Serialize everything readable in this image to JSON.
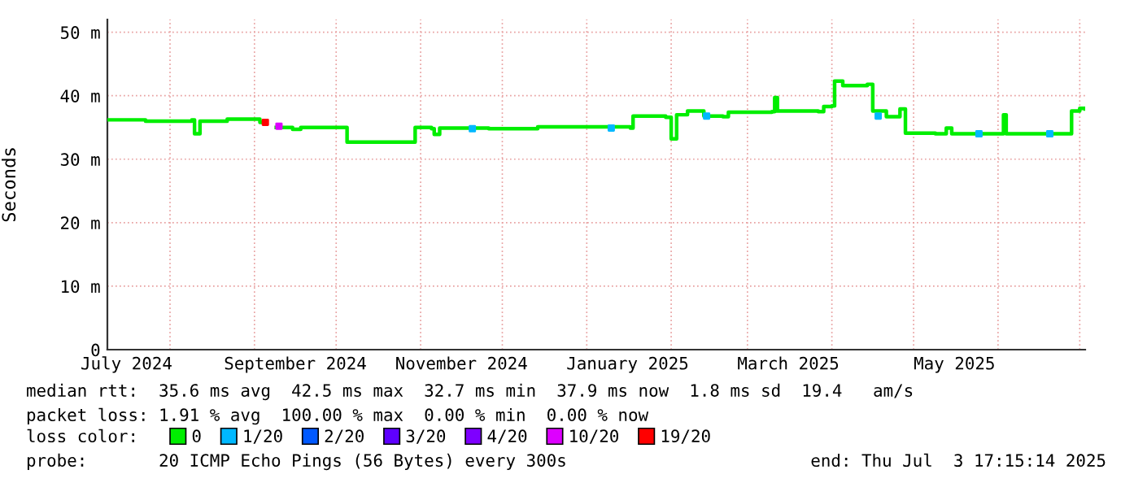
{
  "chart_data": {
    "type": "step",
    "ylabel": "Seconds",
    "x": [
      "2024-07-09",
      "2024-07-23",
      "2024-08-09",
      "2024-08-10",
      "2024-08-12",
      "2024-08-22",
      "2024-09-03",
      "2024-09-05",
      "2024-09-09",
      "2024-09-15",
      "2024-09-18",
      "2024-10-03",
      "2024-10-05",
      "2024-10-29",
      "2024-10-30",
      "2024-11-05",
      "2024-11-06",
      "2024-11-08",
      "2024-11-26",
      "2024-12-14",
      "2025-01-17",
      "2025-01-18",
      "2025-01-30",
      "2025-02-01",
      "2025-02-03",
      "2025-02-07",
      "2025-02-13",
      "2025-02-20",
      "2025-02-22",
      "2025-03-10",
      "2025-03-11",
      "2025-03-12",
      "2025-03-27",
      "2025-03-29",
      "2025-04-01",
      "2025-04-02",
      "2025-04-05",
      "2025-04-14",
      "2025-04-16",
      "2025-04-21",
      "2025-04-26",
      "2025-04-28",
      "2025-05-09",
      "2025-05-13",
      "2025-05-15",
      "2025-06-02",
      "2025-06-03",
      "2025-06-04",
      "2025-06-26",
      "2025-06-28",
      "2025-07-01",
      "2025-07-03"
    ],
    "series": [
      {
        "name": "0",
        "color": "#00ee00",
        "values": [
          36.2,
          36.0,
          36.2,
          34.0,
          36.0,
          36.3,
          35.8,
          null,
          35.0,
          34.7,
          35.0,
          35.0,
          32.7,
          32.7,
          35.0,
          34.8,
          33.9,
          34.9,
          34.8,
          35.1,
          34.9,
          36.8,
          36.6,
          33.2,
          37.0,
          37.6,
          36.8,
          36.7,
          37.4,
          37.5,
          39.7,
          37.6,
          37.5,
          38.3,
          38.4,
          42.3,
          41.6,
          41.8,
          37.6,
          36.7,
          37.9,
          34.1,
          34.0,
          34.9,
          34.0,
          34.0,
          37.0,
          34.0,
          34.0,
          37.6,
          38.0,
          37.9
        ]
      },
      {
        "name": "1/20",
        "color": "#00b8ff",
        "type": "scatter",
        "marker": "square",
        "x": [
          "2024-11-20",
          "2025-01-10",
          "2025-02-14",
          "2025-04-18",
          "2025-05-25",
          "2025-06-20"
        ],
        "values": [
          34.8,
          34.9,
          36.8,
          36.8,
          34.0,
          34.0
        ]
      },
      {
        "name": "2/20",
        "color": "#0059ff",
        "type": "scatter",
        "values": [
          null,
          null,
          null,
          null,
          null,
          null,
          null,
          null,
          null,
          null,
          null,
          null,
          null,
          null,
          null,
          null,
          null,
          null,
          null,
          null,
          null,
          null,
          null,
          null,
          null,
          null,
          null,
          null,
          null,
          null,
          null,
          null,
          null,
          null,
          null,
          null,
          null,
          null,
          null,
          null,
          null,
          null,
          null,
          null,
          null,
          null,
          null,
          null,
          null,
          null,
          null,
          null
        ]
      },
      {
        "name": "3/20",
        "color": "#5e00ff",
        "type": "scatter",
        "values": [
          null,
          null,
          null,
          null,
          null,
          null,
          null,
          null,
          null,
          null,
          null,
          null,
          null,
          null,
          null,
          null,
          null,
          null,
          null,
          null,
          null,
          null,
          null,
          null,
          null,
          null,
          null,
          null,
          null,
          null,
          null,
          null,
          null,
          null,
          null,
          null,
          null,
          null,
          null,
          null,
          null,
          null,
          null,
          null,
          null,
          null,
          null,
          null,
          null,
          null,
          null,
          null
        ]
      },
      {
        "name": "4/20",
        "color": "#7e00ff",
        "type": "scatter",
        "values": [
          null,
          null,
          null,
          null,
          null,
          null,
          null,
          null,
          null,
          null,
          null,
          null,
          null,
          null,
          null,
          null,
          null,
          null,
          null,
          null,
          null,
          null,
          null,
          null,
          null,
          null,
          null,
          null,
          null,
          null,
          null,
          null,
          null,
          null,
          null,
          null,
          null,
          null,
          null,
          null,
          null,
          null,
          null,
          null,
          null,
          null,
          null,
          null,
          null,
          null,
          null,
          null
        ]
      },
      {
        "name": "10/20",
        "color": "#dd00ff",
        "type": "scatter",
        "marker": "square",
        "x": [
          "2024-09-10"
        ],
        "values": [
          35.2
        ]
      },
      {
        "name": "19/20",
        "color": "#ff0000",
        "type": "scatter",
        "marker": "square",
        "x": [
          "2024-09-05"
        ],
        "values": [
          35.8
        ]
      }
    ],
    "xlim": [
      "2024-07-09",
      "2025-07-03"
    ],
    "xticks": [
      {
        "value": "2024-07-16",
        "label": "July 2024"
      },
      {
        "value": "2024-09-16",
        "label": "September 2024"
      },
      {
        "value": "2024-11-16",
        "label": "November 2024"
      },
      {
        "value": "2025-01-16",
        "label": "January 2025"
      },
      {
        "value": "2025-03-16",
        "label": "March 2025"
      },
      {
        "value": "2025-05-16",
        "label": "May 2025"
      },
      {
        "value": "2024-08-01",
        "label": null
      },
      {
        "value": "2024-09-01",
        "label": null
      },
      {
        "value": "2024-10-01",
        "label": null
      },
      {
        "value": "2024-11-01",
        "label": null
      },
      {
        "value": "2024-12-01",
        "label": null
      },
      {
        "value": "2025-01-01",
        "label": null
      },
      {
        "value": "2025-02-01",
        "label": null
      },
      {
        "value": "2025-03-01",
        "label": null
      },
      {
        "value": "2025-04-01",
        "label": null
      },
      {
        "value": "2025-05-01",
        "label": null
      },
      {
        "value": "2025-06-01",
        "label": null
      },
      {
        "value": "2025-07-01",
        "label": null
      }
    ],
    "ylim": [
      0,
      52
    ],
    "yticks": [
      0,
      {
        "value": 10,
        "label": "10 m"
      },
      {
        "value": 20,
        "label": "20 m"
      },
      {
        "value": 30,
        "label": "30 m"
      },
      {
        "value": 40,
        "label": "40 m"
      },
      {
        "value": 50,
        "label": "50 m"
      }
    ],
    "grid": true,
    "legend": "bottom",
    "legend_title": "loss color:",
    "annotations": [
      "median rtt:  35.6 ms avg  42.5 ms max  32.7 ms min  37.9 ms now  1.8 ms sd  19.4   am/s",
      "packet loss: 1.91 % avg  100.00 % max  0.00 % min  0.00 % now",
      "probe:       20 ICMP Echo Pings (56 Bytes) every 300s",
      "end: Thu Jul  3 17:15:14 2025"
    ]
  }
}
